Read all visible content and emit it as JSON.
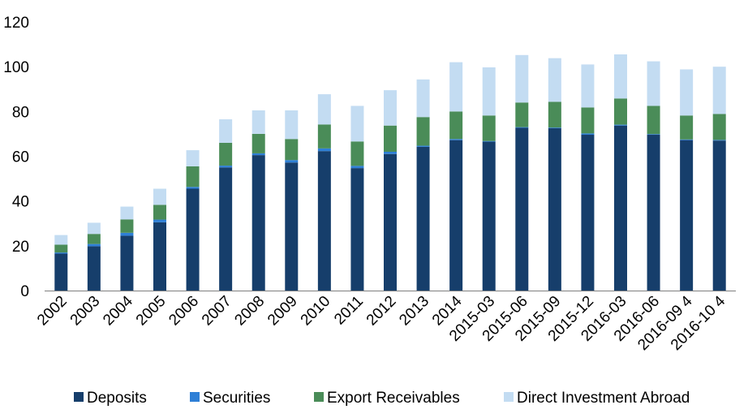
{
  "chart_data": {
    "type": "bar",
    "stacked": true,
    "categories": [
      "2002",
      "2003",
      "2004",
      "2005",
      "2006",
      "2007",
      "2008",
      "2009",
      "2010",
      "2011",
      "2012",
      "2013",
      "2014",
      "2015-03",
      "2015-06",
      "2015-09",
      "2015-12",
      "2016-03",
      "2016-06",
      "2016-09 4",
      "2016-10 4"
    ],
    "series": [
      {
        "name": "Deposits",
        "color": "#163e6b",
        "values": [
          16.5,
          19.8,
          24.5,
          30.5,
          45.5,
          55.0,
          60.5,
          57.2,
          62.3,
          54.7,
          61.0,
          64.2,
          67.2,
          66.5,
          72.7,
          72.5,
          69.6,
          73.7,
          69.6,
          67.2,
          67.0
        ]
      },
      {
        "name": "Securities",
        "color": "#2e7fd6",
        "values": [
          0.5,
          1.0,
          1.3,
          1.2,
          0.8,
          0.8,
          0.8,
          1.1,
          1.2,
          1.0,
          1.0,
          0.5,
          0.5,
          0.3,
          0.3,
          0.3,
          0.6,
          0.4,
          0.3,
          0.3,
          0.3
        ]
      },
      {
        "name": "Export Receivables",
        "color": "#4a8c58",
        "values": [
          3.5,
          4.5,
          6.0,
          6.6,
          9.2,
          10.2,
          8.7,
          9.4,
          10.7,
          10.9,
          11.7,
          12.8,
          12.3,
          11.4,
          11.0,
          11.5,
          11.6,
          11.7,
          12.6,
          10.7,
          11.6
        ]
      },
      {
        "name": "Direct Investment Abroad",
        "color": "#c3dcf2",
        "values": [
          4.3,
          5.0,
          5.7,
          7.2,
          7.2,
          10.5,
          10.5,
          12.8,
          13.5,
          15.9,
          15.8,
          16.8,
          22.0,
          21.5,
          21.2,
          19.5,
          19.2,
          19.7,
          19.9,
          20.6,
          21.1
        ]
      }
    ],
    "ylim": [
      0,
      120
    ],
    "yticks": [
      0,
      20,
      40,
      60,
      80,
      100,
      120
    ],
    "grid": false,
    "legend_position": "bottom"
  }
}
